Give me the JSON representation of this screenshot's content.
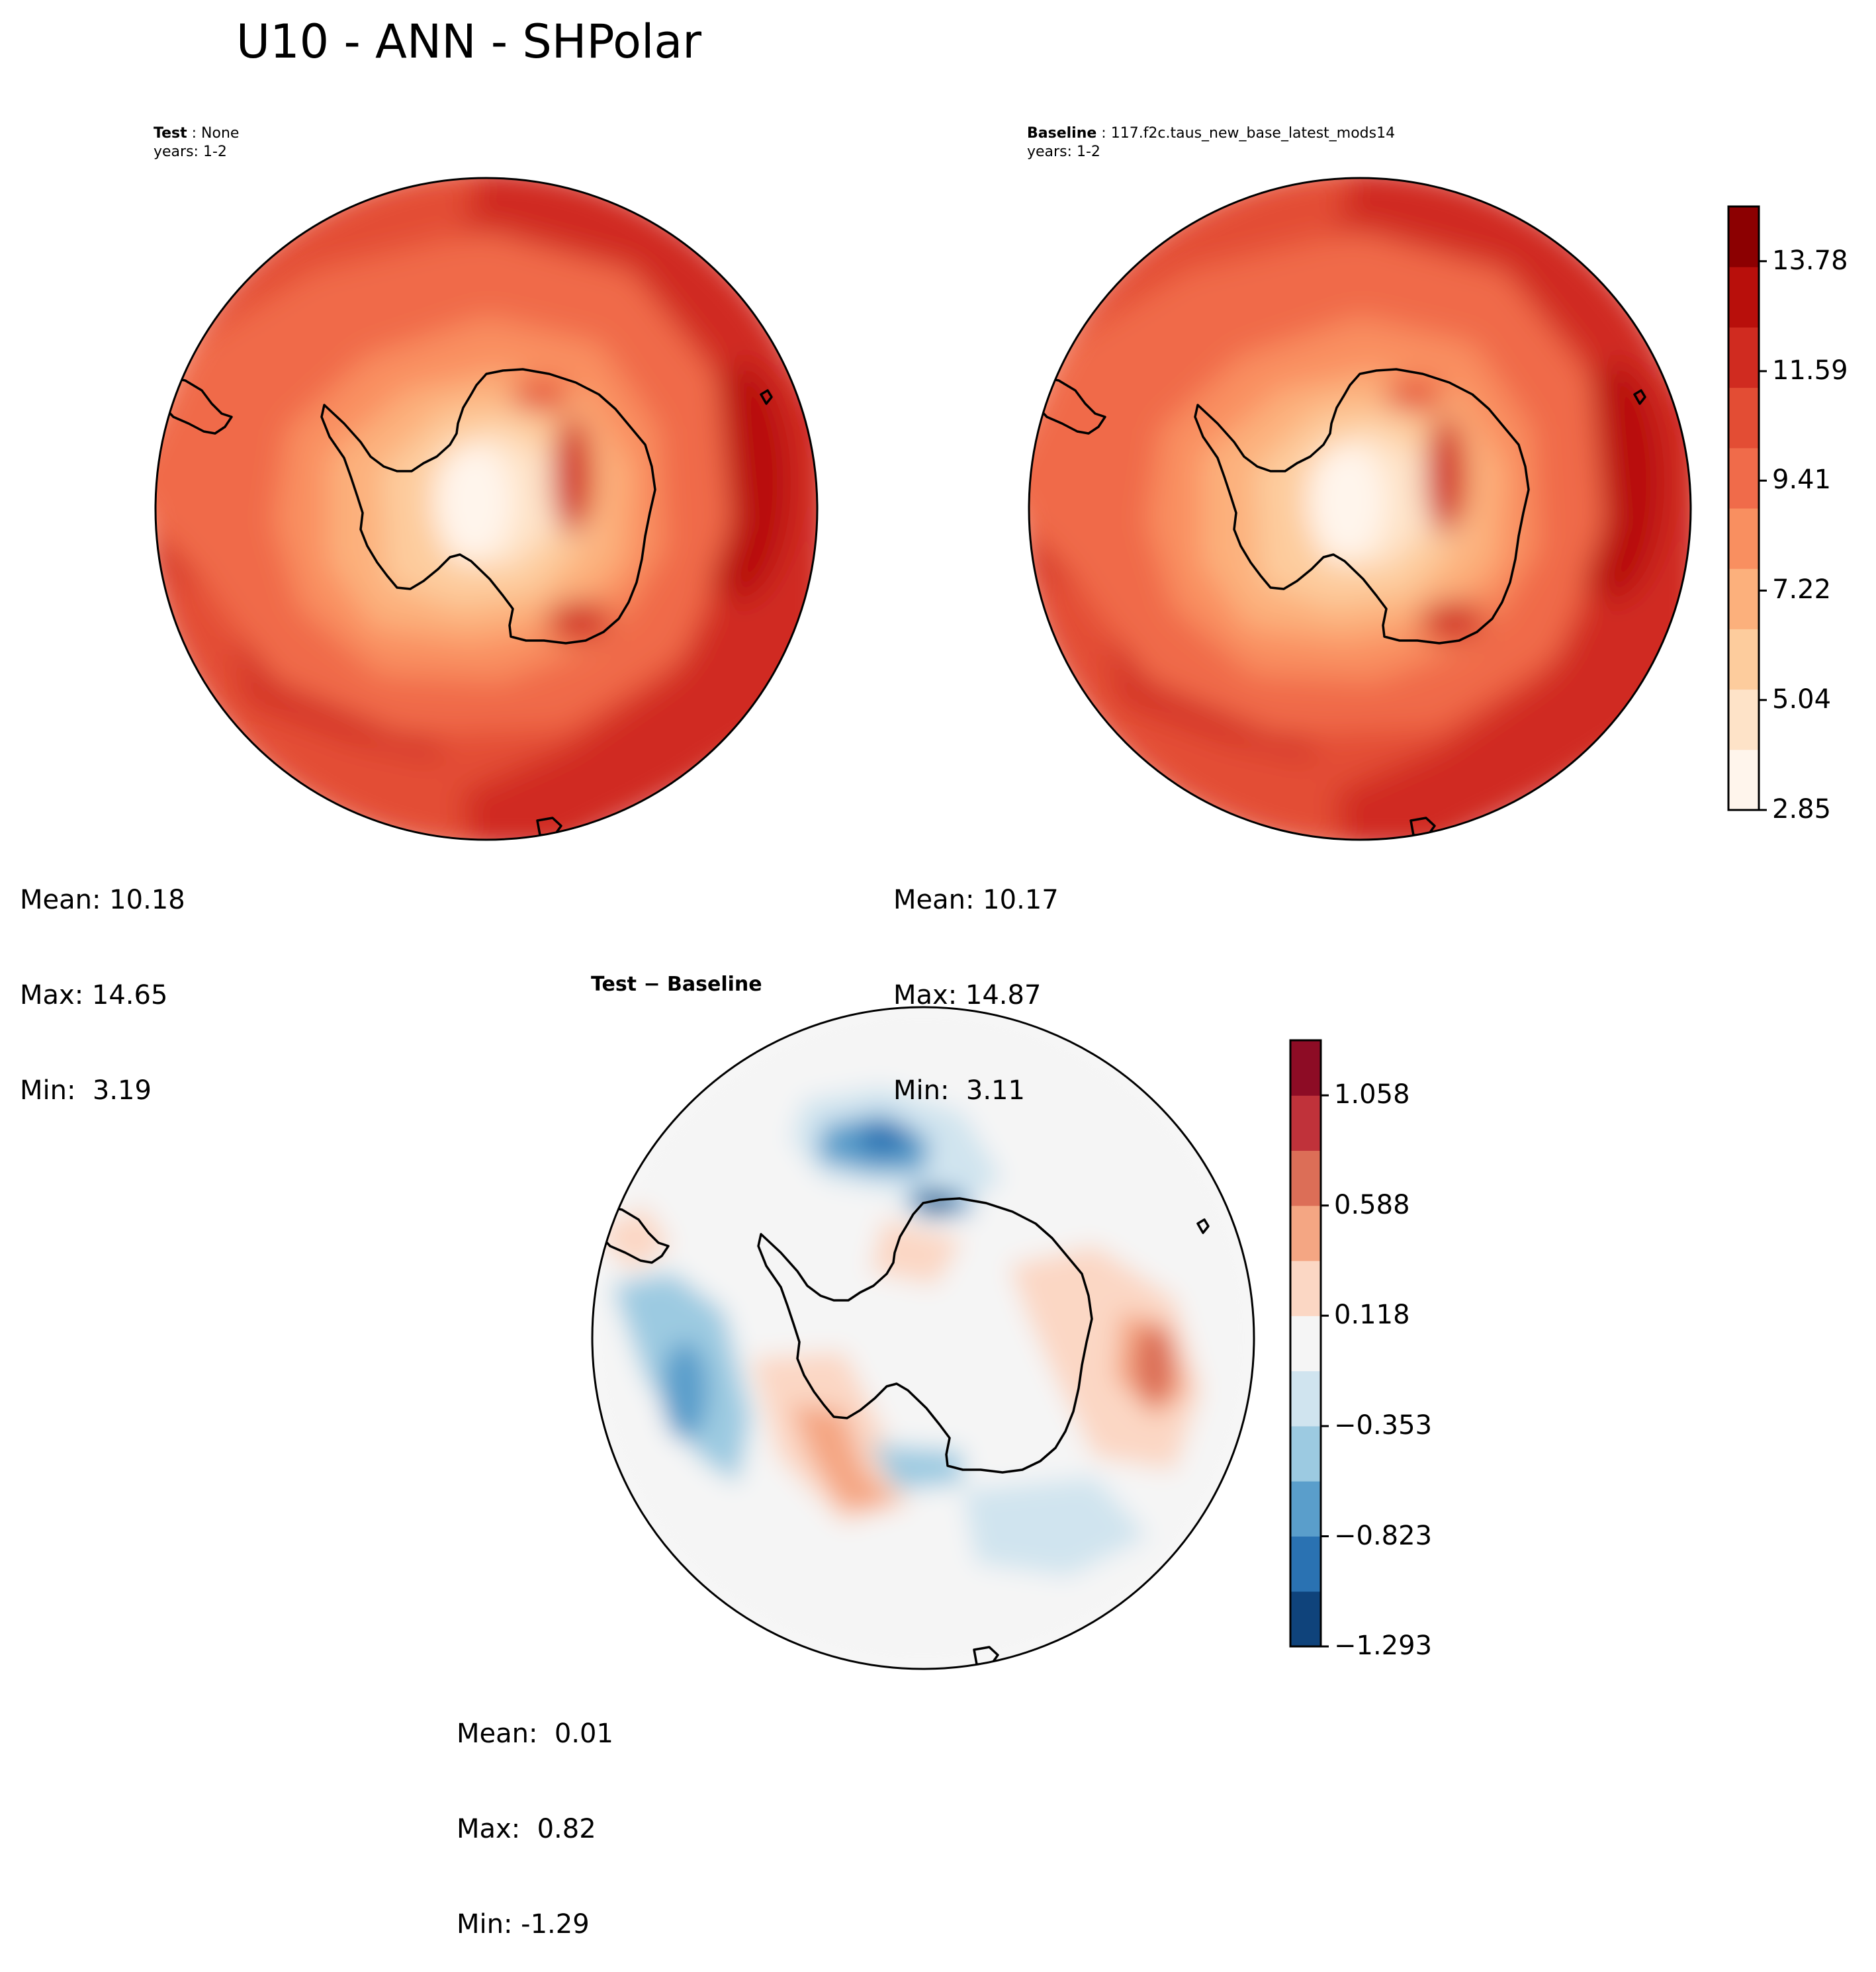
{
  "figure": {
    "title": "U10 - ANN - SHPolar"
  },
  "panels": {
    "test": {
      "name_label": "Test",
      "name_value": "None",
      "years": "years: 1-2",
      "stats": {
        "mean": "Mean: 10.18",
        "max": "Max: 14.65",
        "min": "Min:  3.19"
      }
    },
    "baseline": {
      "name_label": "Baseline",
      "name_value": "117.f2c.taus_new_base_latest_mods14",
      "years": "years: 1-2",
      "stats": {
        "mean": "Mean: 10.17",
        "max": "Max: 14.87",
        "min": "Min:  3.11"
      }
    },
    "diff": {
      "title": "Test − Baseline",
      "stats": {
        "mean": "Mean:  0.01",
        "max": "Max:  0.82",
        "min": "Min: -1.29"
      }
    }
  },
  "chart_data": [
    {
      "type": "heatmap",
      "name": "Test",
      "projection": "south polar stereographic",
      "title": "Test: None",
      "subtitle": "years: 1-2",
      "levels": [
        2.85,
        3.94,
        5.04,
        6.13,
        7.22,
        8.31,
        9.41,
        10.5,
        11.59,
        12.68,
        13.78,
        14.87
      ],
      "colors": [
        "#fff5ec",
        "#fee3c8",
        "#fdcc9d",
        "#fcb07c",
        "#f98f60",
        "#f06b4a",
        "#e34d34",
        "#d02b20",
        "#b80f0b",
        "#8c0001"
      ],
      "mean": 10.18,
      "max": 14.65,
      "min": 3.19
    },
    {
      "type": "heatmap",
      "name": "Baseline",
      "projection": "south polar stereographic",
      "title": "Baseline: 117.f2c.taus_new_base_latest_mods14",
      "subtitle": "years: 1-2",
      "levels": [
        2.85,
        3.94,
        5.04,
        6.13,
        7.22,
        8.31,
        9.41,
        10.5,
        11.59,
        12.68,
        13.78,
        14.87
      ],
      "colorbar_ticks": [
        "2.85",
        "5.04",
        "7.22",
        "9.41",
        "11.59",
        "13.78"
      ],
      "colors": [
        "#fff5ec",
        "#fee3c8",
        "#fdcc9d",
        "#fcb07c",
        "#f98f60",
        "#f06b4a",
        "#e34d34",
        "#d02b20",
        "#b80f0b",
        "#8c0001"
      ],
      "mean": 10.17,
      "max": 14.87,
      "min": 3.11
    },
    {
      "type": "heatmap",
      "name": "Test - Baseline",
      "projection": "south polar stereographic",
      "title": "Test − Baseline",
      "levels": [
        -1.293,
        -1.058,
        -0.823,
        -0.588,
        -0.353,
        -0.118,
        0.118,
        0.353,
        0.588,
        0.823,
        1.058,
        1.293
      ],
      "colorbar_ticks": [
        "−1.293",
        "−0.823",
        "−0.353",
        "0.118",
        "0.588",
        "1.058"
      ],
      "colors": [
        "#0f437b",
        "#2a72b2",
        "#5a9ecb",
        "#9ccae1",
        "#d0e4ef",
        "#f5f5f5",
        "#fbd7c4",
        "#f4a683",
        "#dc6e57",
        "#c0323a",
        "#8d0c25"
      ],
      "mean": 0.01,
      "max": 0.82,
      "min": -1.29
    }
  ]
}
